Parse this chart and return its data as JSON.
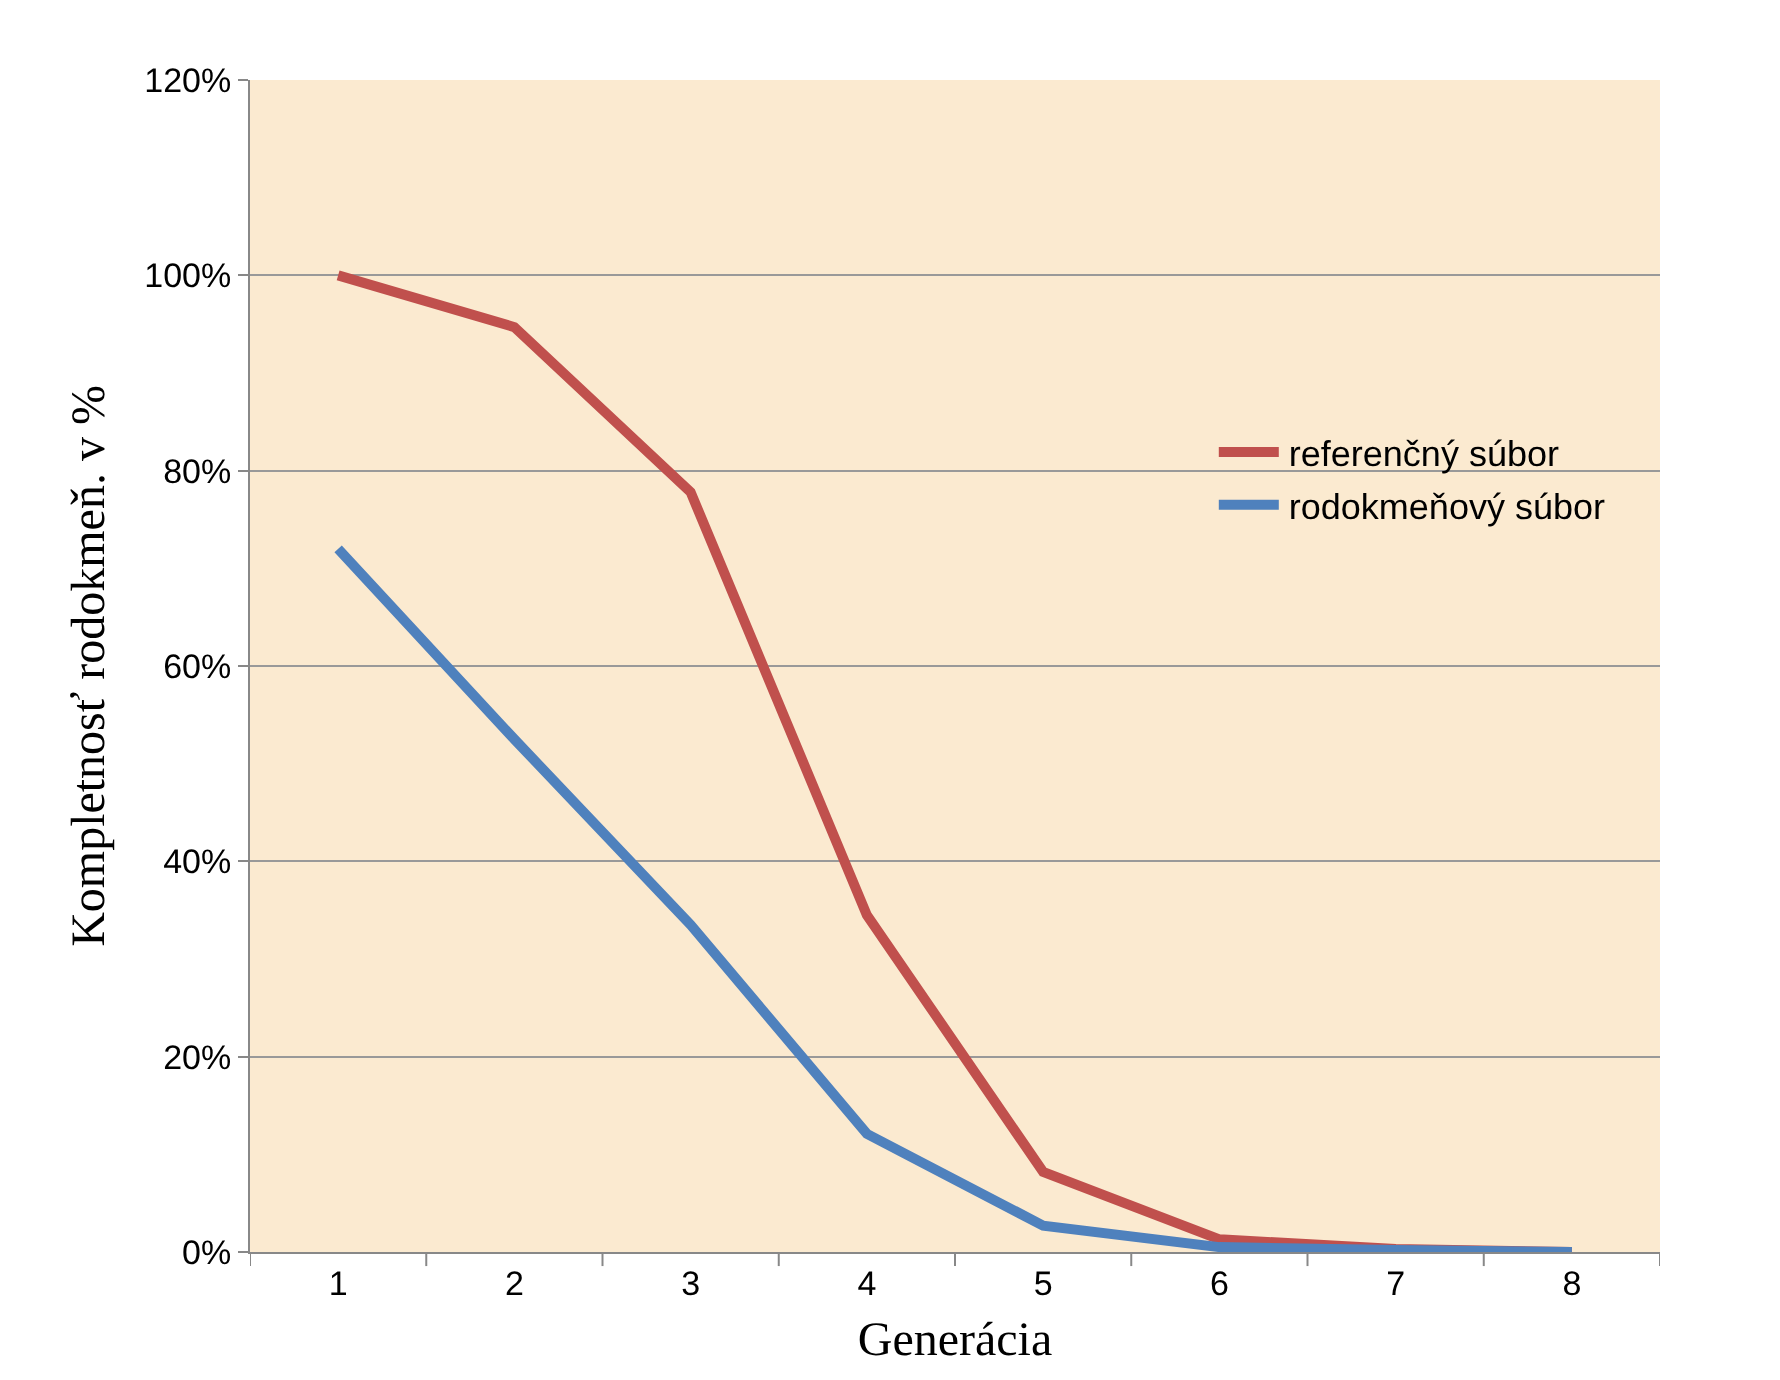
{
  "chart_data": {
    "type": "line",
    "xlabel": "Generácia",
    "ylabel": "Kompletnosť rodokmeň. v %",
    "categories": [
      "1",
      "2",
      "3",
      "4",
      "5",
      "6",
      "7",
      "8"
    ],
    "series": [
      {
        "name": "referenčný súbor",
        "color": "#c0504d",
        "values": [
          100,
          94.7,
          77.8,
          34.5,
          8.2,
          1.3,
          0.3,
          0
        ]
      },
      {
        "name": "rodokmeňový súbor",
        "color": "#4f81bd",
        "values": [
          72,
          52.5,
          33.5,
          12.1,
          2.7,
          0.5,
          0.2,
          0
        ]
      }
    ],
    "ylim": [
      0,
      120
    ],
    "yticks": [
      {
        "value": 0,
        "label": "0%"
      },
      {
        "value": 20,
        "label": "20%"
      },
      {
        "value": 40,
        "label": "40%"
      },
      {
        "value": 60,
        "label": "60%"
      },
      {
        "value": 80,
        "label": "80%"
      },
      {
        "value": 100,
        "label": "100%"
      },
      {
        "value": 120,
        "label": "120%"
      }
    ],
    "grid": "y",
    "legend": "right",
    "marker": "none",
    "line_style": "solid"
  }
}
